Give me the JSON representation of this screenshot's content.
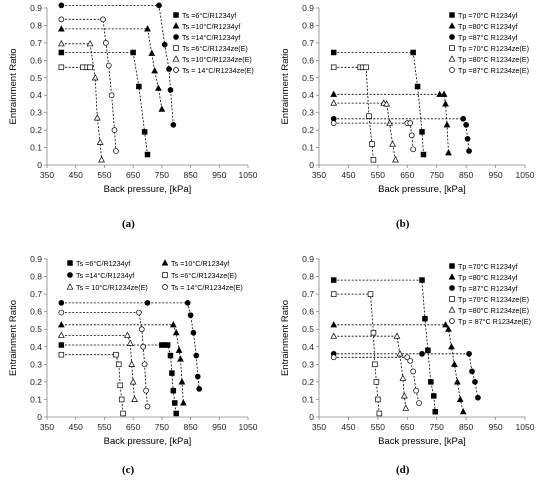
{
  "chart_data": [
    {
      "type": "line",
      "panel_label": "(a)",
      "xlabel": "Back pressure, [kPa]",
      "ylabel": "Entrainment Ratio",
      "xlim": [
        350,
        1050
      ],
      "ylim": [
        0,
        0.9
      ],
      "xticks": [
        350,
        450,
        550,
        650,
        750,
        850,
        950,
        1050
      ],
      "yticks": [
        0,
        0.1,
        0.2,
        0.3,
        0.4,
        0.5,
        0.6,
        0.7,
        0.8,
        0.9
      ],
      "legend_position": "top-right",
      "series": [
        {
          "name": "Ts =6°C/R1234yf",
          "marker": "square-filled",
          "points": [
            [
              400,
              0.645
            ],
            [
              650,
              0.645
            ],
            [
              670,
              0.45
            ],
            [
              690,
              0.19
            ],
            [
              700,
              0.06
            ]
          ]
        },
        {
          "name": "Ts =10°C/R1234yf",
          "marker": "triangle-filled",
          "points": [
            [
              400,
              0.78
            ],
            [
              700,
              0.78
            ],
            [
              715,
              0.64
            ],
            [
              725,
              0.54
            ],
            [
              738,
              0.44
            ],
            [
              750,
              0.32
            ]
          ]
        },
        {
          "name": "Ts =14°C/R1234yf",
          "marker": "circle-filled",
          "points": [
            [
              400,
              0.915
            ],
            [
              740,
              0.915
            ],
            [
              760,
              0.69
            ],
            [
              775,
              0.55
            ],
            [
              780,
              0.43
            ],
            [
              790,
              0.23
            ]
          ]
        },
        {
          "name": "Ts =6°C/R1234ze(E)",
          "marker": "square-open",
          "points": [
            [
              400,
              0.56
            ],
            [
              475,
              0.56
            ],
            [
              490,
              0.56
            ],
            [
              500,
              0.56
            ]
          ]
        },
        {
          "name": "Ts =10°C/R1234ze(E)",
          "marker": "triangle-open",
          "points": [
            [
              400,
              0.695
            ],
            [
              500,
              0.695
            ],
            [
              518,
              0.5
            ],
            [
              525,
              0.27
            ],
            [
              535,
              0.13
            ],
            [
              540,
              0.03
            ]
          ]
        },
        {
          "name": "Ts = 14°C/R1234ze(E)",
          "marker": "circle-open",
          "points": [
            [
              400,
              0.835
            ],
            [
              545,
              0.835
            ],
            [
              555,
              0.7
            ],
            [
              565,
              0.57
            ],
            [
              575,
              0.4
            ],
            [
              585,
              0.2
            ],
            [
              590,
              0.08
            ]
          ]
        }
      ]
    },
    {
      "type": "line",
      "panel_label": "(b)",
      "xlabel": "Back pressure, [kPa]",
      "ylabel": "Entrainment Ratio",
      "xlim": [
        350,
        1050
      ],
      "ylim": [
        0,
        0.9
      ],
      "xticks": [
        350,
        450,
        550,
        650,
        750,
        850,
        950,
        1050
      ],
      "yticks": [
        0,
        0.1,
        0.2,
        0.3,
        0.4,
        0.5,
        0.6,
        0.7,
        0.8,
        0.9
      ],
      "legend_position": "top-right",
      "series": [
        {
          "name": "Tp =70°C R1234yf",
          "marker": "square-filled",
          "points": [
            [
              400,
              0.645
            ],
            [
              670,
              0.645
            ],
            [
              685,
              0.45
            ],
            [
              700,
              0.19
            ],
            [
              705,
              0.06
            ]
          ]
        },
        {
          "name": "Tp =80°C R1234yf",
          "marker": "triangle-filled",
          "points": [
            [
              400,
              0.405
            ],
            [
              760,
              0.405
            ],
            [
              775,
              0.405
            ],
            [
              780,
              0.35
            ],
            [
              785,
              0.23
            ],
            [
              790,
              0.07
            ]
          ]
        },
        {
          "name": "Tp =87°C R1234yf",
          "marker": "circle-filled",
          "points": [
            [
              400,
              0.265
            ],
            [
              840,
              0.265
            ],
            [
              850,
              0.23
            ],
            [
              855,
              0.15
            ],
            [
              860,
              0.08
            ]
          ]
        },
        {
          "name": "Tp =70°C R1234ze(E)",
          "marker": "square-open",
          "points": [
            [
              400,
              0.56
            ],
            [
              490,
              0.56
            ],
            [
              500,
              0.56
            ],
            [
              510,
              0.56
            ],
            [
              520,
              0.28
            ],
            [
              530,
              0.12
            ],
            [
              535,
              0.03
            ]
          ]
        },
        {
          "name": "Tp =80°C R1234ze(E)",
          "marker": "triangle-open",
          "points": [
            [
              400,
              0.355
            ],
            [
              570,
              0.355
            ],
            [
              580,
              0.35
            ],
            [
              590,
              0.24
            ],
            [
              600,
              0.12
            ],
            [
              610,
              0.03
            ]
          ]
        },
        {
          "name": "Tp =87°C R1234ze(E)",
          "marker": "circle-open",
          "points": [
            [
              400,
              0.24
            ],
            [
              650,
              0.24
            ],
            [
              660,
              0.24
            ],
            [
              665,
              0.17
            ],
            [
              670,
              0.09
            ]
          ]
        }
      ]
    },
    {
      "type": "line",
      "panel_label": "(c)",
      "xlabel": "Back pressure, [kPa]",
      "ylabel": "Entrainment Ratio",
      "xlim": [
        350,
        1050
      ],
      "ylim": [
        0,
        0.9
      ],
      "xticks": [
        350,
        450,
        550,
        650,
        750,
        850,
        950,
        1050
      ],
      "yticks": [
        0,
        0.1,
        0.2,
        0.3,
        0.4,
        0.5,
        0.6,
        0.7,
        0.8,
        0.9
      ],
      "legend_position": "top",
      "series": [
        {
          "name": "Ts =6°C/R1234yf",
          "marker": "square-filled",
          "points": [
            [
              400,
              0.41
            ],
            [
              750,
              0.41
            ],
            [
              760,
              0.41
            ],
            [
              770,
              0.41
            ],
            [
              780,
              0.35
            ],
            [
              785,
              0.25
            ],
            [
              790,
              0.15
            ],
            [
              795,
              0.08
            ],
            [
              800,
              0.02
            ]
          ]
        },
        {
          "name": "Ts =10°C/R1234yf",
          "marker": "triangle-filled",
          "points": [
            [
              400,
              0.525
            ],
            [
              790,
              0.525
            ],
            [
              800,
              0.48
            ],
            [
              810,
              0.38
            ],
            [
              815,
              0.33
            ],
            [
              820,
              0.2
            ],
            [
              825,
              0.08
            ]
          ]
        },
        {
          "name": "Ts =14°C/R1234yf",
          "marker": "circle-filled",
          "points": [
            [
              400,
              0.65
            ],
            [
              700,
              0.65
            ],
            [
              840,
              0.65
            ],
            [
              850,
              0.58
            ],
            [
              860,
              0.48
            ],
            [
              870,
              0.35
            ],
            [
              875,
              0.23
            ],
            [
              880,
              0.16
            ]
          ]
        },
        {
          "name": "Ts =6°C/R1234ze(E)",
          "marker": "square-open",
          "points": [
            [
              400,
              0.355
            ],
            [
              590,
              0.355
            ],
            [
              600,
              0.3
            ],
            [
              605,
              0.18
            ],
            [
              610,
              0.1
            ],
            [
              615,
              0.02
            ]
          ]
        },
        {
          "name": "Ts = 10°C/R1234ze(E)",
          "marker": "triangle-open",
          "points": [
            [
              400,
              0.465
            ],
            [
              630,
              0.465
            ],
            [
              640,
              0.42
            ],
            [
              645,
              0.3
            ],
            [
              650,
              0.2
            ],
            [
              655,
              0.1
            ]
          ]
        },
        {
          "name": "Ts = 14°C/R1234ze(E)",
          "marker": "circle-open",
          "points": [
            [
              400,
              0.595
            ],
            [
              670,
              0.595
            ],
            [
              680,
              0.5
            ],
            [
              685,
              0.4
            ],
            [
              690,
              0.3
            ],
            [
              695,
              0.15
            ],
            [
              700,
              0.06
            ]
          ]
        }
      ]
    },
    {
      "type": "line",
      "panel_label": "(d)",
      "xlabel": "Back pressure, [kPa]",
      "ylabel": "Entrainment Ratio",
      "xlim": [
        350,
        1050
      ],
      "ylim": [
        0,
        0.9
      ],
      "xticks": [
        350,
        450,
        550,
        650,
        750,
        850,
        950,
        1050
      ],
      "yticks": [
        0,
        0.1,
        0.2,
        0.3,
        0.4,
        0.5,
        0.6,
        0.7,
        0.8,
        0.9
      ],
      "legend_position": "top-right",
      "series": [
        {
          "name": "Tp =70°C R1234yf",
          "marker": "square-filled",
          "points": [
            [
              400,
              0.78
            ],
            [
              700,
              0.78
            ],
            [
              710,
              0.56
            ],
            [
              720,
              0.38
            ],
            [
              730,
              0.2
            ],
            [
              740,
              0.12
            ],
            [
              745,
              0.03
            ]
          ]
        },
        {
          "name": "Tp =80°C R1234yf",
          "marker": "triangle-filled",
          "points": [
            [
              400,
              0.525
            ],
            [
              780,
              0.525
            ],
            [
              790,
              0.5
            ],
            [
              800,
              0.4
            ],
            [
              810,
              0.3
            ],
            [
              820,
              0.2
            ],
            [
              830,
              0.1
            ],
            [
              840,
              0.03
            ]
          ]
        },
        {
          "name": "Tp =87°C R1234yf",
          "marker": "circle-filled",
          "points": [
            [
              400,
              0.36
            ],
            [
              700,
              0.36
            ],
            [
              860,
              0.36
            ],
            [
              870,
              0.26
            ],
            [
              880,
              0.2
            ],
            [
              890,
              0.11
            ]
          ]
        },
        {
          "name": "Tp =70°C R1234ze(E)",
          "marker": "square-open",
          "points": [
            [
              400,
              0.7
            ],
            [
              525,
              0.7
            ],
            [
              535,
              0.48
            ],
            [
              540,
              0.3
            ],
            [
              545,
              0.2
            ],
            [
              550,
              0.1
            ],
            [
              555,
              0.02
            ]
          ]
        },
        {
          "name": "Tp =80°C R1234ze(E)",
          "marker": "triangle-open",
          "points": [
            [
              400,
              0.46
            ],
            [
              615,
              0.46
            ],
            [
              625,
              0.36
            ],
            [
              635,
              0.22
            ],
            [
              640,
              0.12
            ],
            [
              645,
              0.05
            ]
          ]
        },
        {
          "name": "Tp = 87°C R1234ze(E)",
          "marker": "circle-open",
          "points": [
            [
              400,
              0.34
            ],
            [
              650,
              0.34
            ],
            [
              660,
              0.32
            ],
            [
              670,
              0.26
            ],
            [
              680,
              0.15
            ],
            [
              690,
              0.08
            ]
          ]
        }
      ]
    }
  ]
}
